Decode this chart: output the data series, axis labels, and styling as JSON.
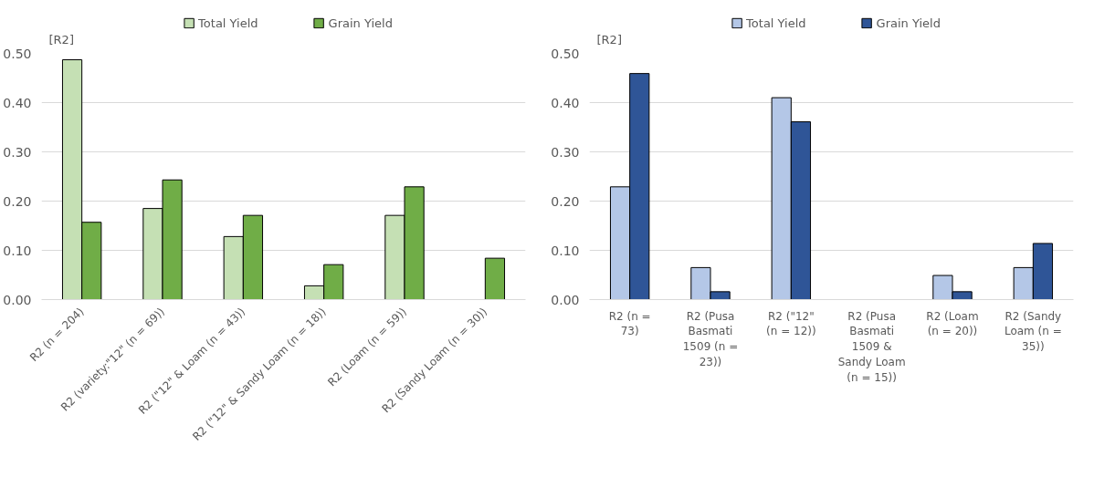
{
  "chart_data": [
    {
      "type": "bar",
      "ylabel": "[R2]",
      "categories": [
        "R2 (n = 204)",
        "R2 (variety:\"12\" (n = 69))",
        "R2 (\"12\" & Loam (n = 43))",
        "R2 (\"12\" & Sandy Loam (n = 18))",
        "R2 (Loam (n = 59))",
        "R2 (Sandy Loam (n = 30))"
      ],
      "series": [
        {
          "name": "Total Yield",
          "color": "#c5e0b4",
          "values": [
            0.487,
            0.185,
            0.128,
            0.028,
            0.171,
            null
          ]
        },
        {
          "name": "Grain Yield",
          "color": "#70ad47",
          "values": [
            0.157,
            0.243,
            0.171,
            0.071,
            0.229,
            0.084
          ]
        }
      ],
      "ylim": [
        0,
        0.5
      ],
      "yticks": [
        {
          "value": 0,
          "label": "0.00"
        },
        {
          "value": 0.1,
          "label": "0.10"
        },
        {
          "value": 0.2,
          "label": "0.20"
        },
        {
          "value": 0.3,
          "label": "0.30"
        },
        {
          "value": 0.4,
          "label": "0.40"
        },
        {
          "value": 0.5,
          "label": "0.50"
        }
      ],
      "grid": "y",
      "legend": "top"
    },
    {
      "type": "bar",
      "ylabel": "[R2]",
      "categories": [
        "R2 (n = 73)",
        "R2 (Pusa Basmati 1509 (n = 23))",
        "R2 (\"12\" (n = 12))",
        "R2 (Pusa Basmati 1509 & Sandy Loam (n = 15))",
        "R2 (Loam (n = 20))",
        "R2 (Sandy Loam (n = 35))"
      ],
      "series": [
        {
          "name": "Total Yield",
          "color": "#b4c7e7",
          "values": [
            0.229,
            0.065,
            0.41,
            null,
            0.049,
            0.065
          ]
        },
        {
          "name": "Grain Yield",
          "color": "#2f5597",
          "values": [
            0.459,
            0.016,
            0.361,
            null,
            0.016,
            0.114
          ]
        }
      ],
      "ylim": [
        0,
        0.5
      ],
      "yticks": [
        {
          "value": 0,
          "label": "0.00"
        },
        {
          "value": 0.1,
          "label": "0.10"
        },
        {
          "value": 0.2,
          "label": "0.20"
        },
        {
          "value": 0.3,
          "label": "0.30"
        },
        {
          "value": 0.4,
          "label": "0.40"
        },
        {
          "value": 0.5,
          "label": "0.50"
        }
      ],
      "grid": "y",
      "legend": "top"
    }
  ]
}
